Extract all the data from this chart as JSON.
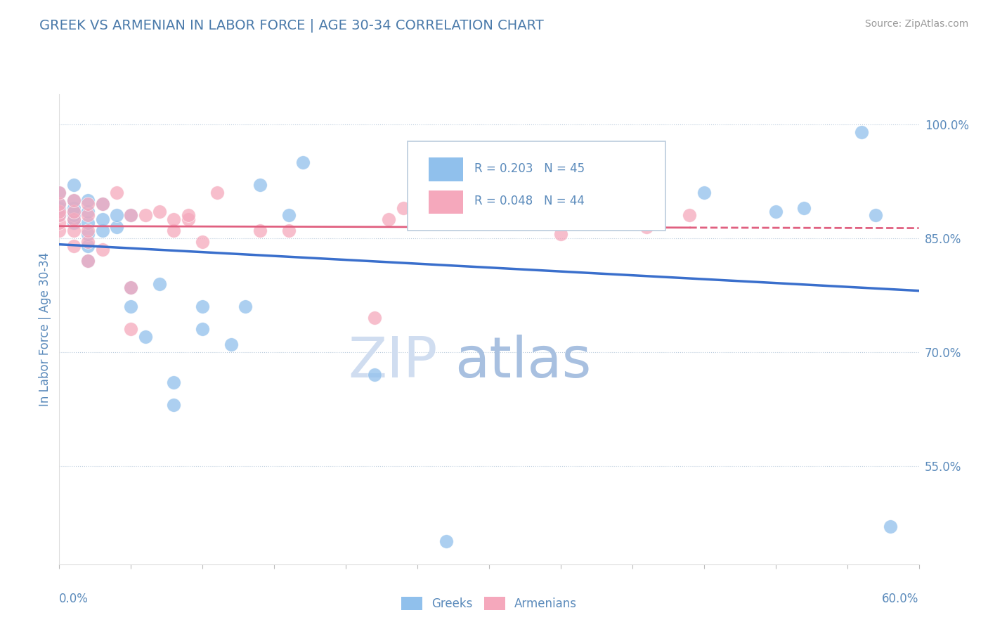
{
  "title": "GREEK VS ARMENIAN IN LABOR FORCE | AGE 30-34 CORRELATION CHART",
  "source": "Source: ZipAtlas.com",
  "ylabel": "In Labor Force | Age 30-34",
  "yaxis_ticks": [
    0.55,
    0.7,
    0.85,
    1.0
  ],
  "yaxis_tick_labels": [
    "55.0%",
    "70.0%",
    "85.0%",
    "100.0%"
  ],
  "xlim": [
    0.0,
    0.6
  ],
  "ylim": [
    0.42,
    1.04
  ],
  "legend_greek": "Greeks",
  "legend_armenian": "Armenians",
  "r_greek": 0.203,
  "n_greek": 45,
  "r_armenian": 0.048,
  "n_armenian": 44,
  "greek_color": "#90C0EC",
  "armenian_color": "#F5A8BC",
  "greek_line_color": "#3A6FCC",
  "armenian_line_color": "#E06080",
  "title_color": "#4A7AAA",
  "axis_color": "#5A8ABB",
  "watermark_zip_color": "#D0DDF0",
  "watermark_atlas_color": "#A8C0E0",
  "greek_x": [
    0.0,
    0.0,
    0.0,
    0.0,
    0.01,
    0.01,
    0.01,
    0.01,
    0.01,
    0.01,
    0.01,
    0.02,
    0.02,
    0.02,
    0.02,
    0.02,
    0.02,
    0.03,
    0.03,
    0.03,
    0.04,
    0.04,
    0.05,
    0.05,
    0.05,
    0.06,
    0.07,
    0.08,
    0.08,
    0.1,
    0.1,
    0.12,
    0.13,
    0.14,
    0.16,
    0.17,
    0.22,
    0.27,
    0.31,
    0.45,
    0.5,
    0.52,
    0.56,
    0.57,
    0.58
  ],
  "greek_y": [
    0.88,
    0.89,
    0.895,
    0.91,
    0.87,
    0.875,
    0.88,
    0.885,
    0.89,
    0.9,
    0.92,
    0.82,
    0.84,
    0.855,
    0.87,
    0.885,
    0.9,
    0.86,
    0.875,
    0.895,
    0.865,
    0.88,
    0.76,
    0.785,
    0.88,
    0.72,
    0.79,
    0.63,
    0.66,
    0.73,
    0.76,
    0.71,
    0.76,
    0.92,
    0.88,
    0.95,
    0.67,
    0.45,
    0.88,
    0.91,
    0.885,
    0.89,
    0.99,
    0.88,
    0.47
  ],
  "armenian_x": [
    0.0,
    0.0,
    0.0,
    0.0,
    0.0,
    0.0,
    0.01,
    0.01,
    0.01,
    0.01,
    0.01,
    0.02,
    0.02,
    0.02,
    0.02,
    0.02,
    0.03,
    0.03,
    0.04,
    0.05,
    0.05,
    0.05,
    0.06,
    0.07,
    0.08,
    0.08,
    0.09,
    0.09,
    0.1,
    0.11,
    0.14,
    0.16,
    0.22,
    0.23,
    0.24,
    0.25,
    0.28,
    0.3,
    0.35,
    0.36,
    0.38,
    0.4,
    0.41,
    0.44
  ],
  "armenian_y": [
    0.86,
    0.87,
    0.88,
    0.885,
    0.895,
    0.91,
    0.84,
    0.86,
    0.875,
    0.885,
    0.9,
    0.82,
    0.845,
    0.86,
    0.88,
    0.895,
    0.835,
    0.895,
    0.91,
    0.73,
    0.785,
    0.88,
    0.88,
    0.885,
    0.86,
    0.875,
    0.875,
    0.88,
    0.845,
    0.91,
    0.86,
    0.86,
    0.745,
    0.875,
    0.89,
    0.88,
    0.88,
    0.87,
    0.855,
    0.87,
    0.87,
    0.87,
    0.865,
    0.88
  ]
}
